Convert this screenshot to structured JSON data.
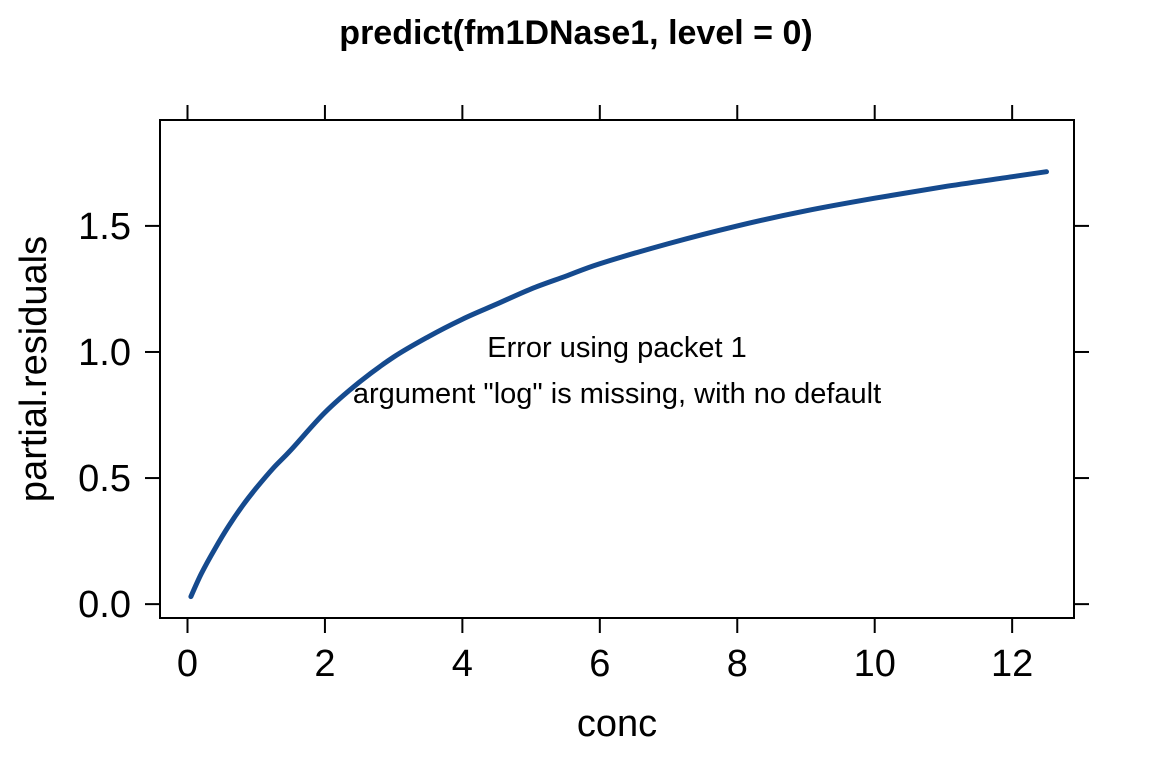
{
  "chart_data": {
    "type": "line",
    "title": "predict(fm1DNase1, level = 0)",
    "xlabel": "conc",
    "ylabel": "partial.residuals",
    "xlim": [
      -0.4,
      12.9
    ],
    "ylim": [
      -0.055,
      1.92
    ],
    "x_ticks": [
      0,
      2,
      4,
      6,
      8,
      10,
      12
    ],
    "x_tick_labels": [
      "0",
      "2",
      "4",
      "6",
      "8",
      "10",
      "12"
    ],
    "y_ticks": [
      0.0,
      0.5,
      1.0,
      1.5
    ],
    "y_tick_labels": [
      "0.0",
      "0.5",
      "1.0",
      "1.5"
    ],
    "grid": false,
    "legend": "none",
    "line_color": "#154A8E",
    "series": [
      {
        "x": [
          0.05,
          0.2,
          0.4,
          0.6,
          0.8,
          1.0,
          1.25,
          1.5,
          2.0,
          2.5,
          3.0,
          3.5,
          4.0,
          4.5,
          5.0,
          5.5,
          6.0,
          7.0,
          8.0,
          9.0,
          10.0,
          11.0,
          12.0,
          12.5
        ],
        "y": [
          0.03,
          0.12,
          0.22,
          0.31,
          0.39,
          0.46,
          0.54,
          0.61,
          0.76,
          0.88,
          0.98,
          1.06,
          1.13,
          1.19,
          1.25,
          1.3,
          1.35,
          1.43,
          1.5,
          1.56,
          1.61,
          1.655,
          1.695,
          1.715
        ]
      }
    ],
    "annotations": [
      "Error using packet 1",
      "argument \"log\" is missing, with no default"
    ]
  }
}
